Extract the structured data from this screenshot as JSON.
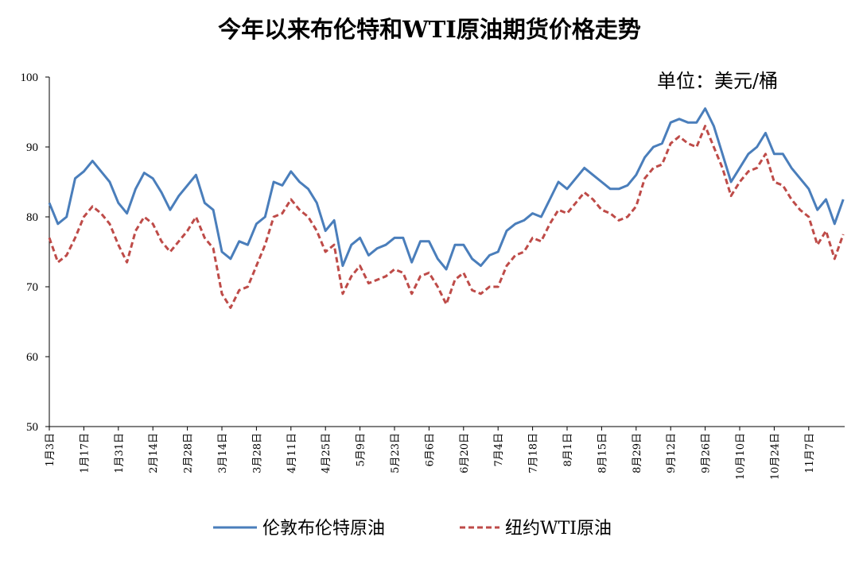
{
  "chart_data": {
    "type": "line",
    "title": "今年以来布伦特和WTI原油期货价格走势",
    "annotation": "单位：美元/桶",
    "categories": [
      "1月3日",
      null,
      null,
      null,
      "1月17日",
      null,
      null,
      null,
      "1月31日",
      null,
      null,
      null,
      "2月14日",
      null,
      null,
      null,
      "2月28日",
      null,
      null,
      null,
      "3月14日",
      null,
      null,
      null,
      "3月28日",
      null,
      null,
      null,
      "4月11日",
      null,
      null,
      null,
      "4月25日",
      null,
      null,
      null,
      "5月9日",
      null,
      null,
      null,
      "5月23日",
      null,
      null,
      null,
      "6月6日",
      null,
      null,
      null,
      "6月20日",
      null,
      null,
      null,
      "7月4日",
      null,
      null,
      null,
      "7月18日",
      null,
      null,
      null,
      "8月1日",
      null,
      null,
      null,
      "8月15日",
      null,
      null,
      null,
      "8月29日",
      null,
      null,
      null,
      "9月12日",
      null,
      null,
      null,
      "9月26日",
      null,
      null,
      null,
      "10月10日",
      null,
      null,
      null,
      "10月24日",
      null,
      null,
      null,
      "11月7日",
      null,
      null,
      null,
      null
    ],
    "series": [
      {
        "name": "伦敦布伦特原油",
        "color": "#4a7ebb",
        "dash": false,
        "values": [
          82,
          79,
          80,
          85.5,
          86.5,
          88,
          86.5,
          85,
          82,
          80.5,
          84,
          86.3,
          85.5,
          83.5,
          81,
          83,
          84.5,
          86,
          82,
          81,
          75,
          74,
          76.5,
          76,
          79,
          80,
          85,
          84.5,
          86.5,
          85,
          84,
          82,
          78,
          79.5,
          73,
          76,
          77,
          74.5,
          75.5,
          76,
          77,
          77,
          73.5,
          76.5,
          76.5,
          74,
          72.5,
          76,
          76,
          74,
          73,
          74.5,
          75,
          78,
          79,
          79.5,
          80.5,
          80,
          82.5,
          85,
          84,
          85.5,
          87,
          86,
          85,
          84,
          84,
          84.5,
          86,
          88.5,
          90,
          90.5,
          93.5,
          94,
          93.5,
          93.5,
          95.5,
          93,
          89,
          85,
          87,
          89,
          90,
          92,
          89,
          89,
          87,
          85.5,
          84,
          81,
          82.5,
          79,
          82.5
        ]
      },
      {
        "name": "纽约WTI原油",
        "color": "#be4b48",
        "dash": true,
        "values": [
          77,
          73.5,
          74.5,
          77,
          80,
          81.5,
          80.5,
          79,
          76,
          73.5,
          78,
          80,
          79,
          76.5,
          75,
          76.5,
          78,
          80,
          77,
          75.5,
          69,
          67,
          69.5,
          70,
          73,
          76,
          80,
          80.5,
          82.5,
          81,
          80,
          78,
          75,
          76,
          69,
          71.5,
          73,
          70.5,
          71,
          71.5,
          72.5,
          72,
          69,
          71.5,
          72,
          70,
          67.5,
          71,
          72,
          69.5,
          69,
          70,
          70,
          73,
          74.5,
          75,
          77,
          76.5,
          79,
          81,
          80.5,
          82,
          83.5,
          82.5,
          81,
          80.5,
          79.5,
          80,
          81.5,
          85.5,
          87,
          87.5,
          90.5,
          91.5,
          90.5,
          90,
          93,
          90,
          87,
          83,
          85,
          86.5,
          87,
          89,
          85,
          84.5,
          82.5,
          81,
          80,
          76,
          78,
          74,
          77.5
        ]
      }
    ],
    "ylim": [
      50,
      100
    ],
    "yticks": [
      50,
      60,
      70,
      80,
      90,
      100
    ],
    "grid": false
  }
}
